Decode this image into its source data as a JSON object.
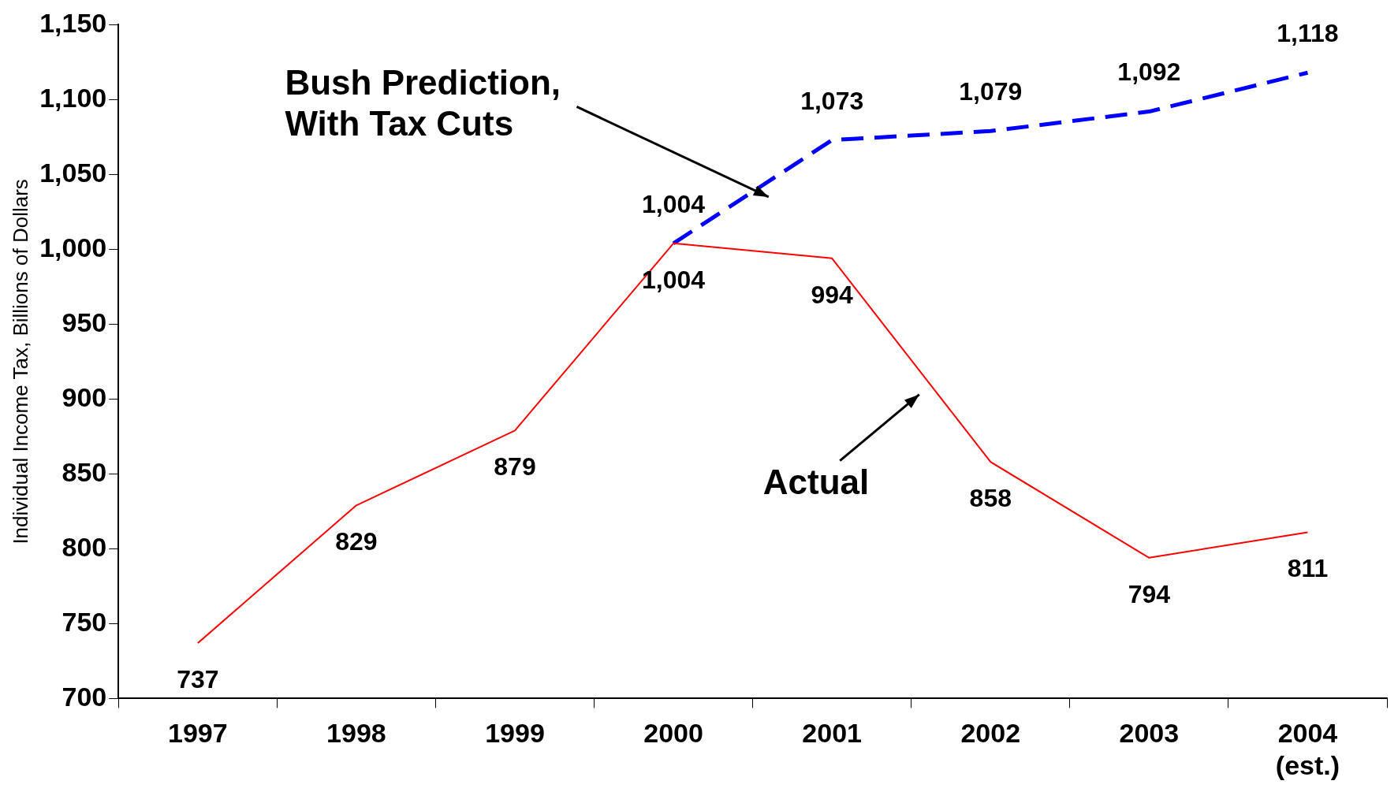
{
  "chart_data": {
    "type": "line",
    "ylabel": "Individual Income Tax, Billions of Dollars",
    "categories": [
      "1997",
      "1998",
      "1999",
      "2000",
      "2001",
      "2002",
      "2003",
      "2004\n(est.)"
    ],
    "series": [
      {
        "name": "Actual",
        "color": "#ff0000",
        "line_style": "solid",
        "values": [
          737,
          829,
          879,
          1004,
          994,
          858,
          794,
          811
        ],
        "value_labels": [
          "737",
          "829",
          "879",
          "1,004",
          "994",
          "858",
          "794",
          "811"
        ]
      },
      {
        "name": "Bush Prediction,\nWith Tax Cuts",
        "color": "#0000ff",
        "line_style": "dashed",
        "values": [
          null,
          null,
          null,
          1004,
          1073,
          1079,
          1092,
          1118
        ],
        "value_labels": [
          null,
          null,
          null,
          "1,004",
          "1,073",
          "1,079",
          "1,092",
          "1,118"
        ]
      }
    ],
    "ylim": [
      700,
      1150
    ],
    "yticks": [
      700,
      750,
      800,
      850,
      900,
      950,
      {
        "value": 1000,
        "label": "1,000"
      },
      {
        "value": 1050,
        "label": "1,050"
      },
      {
        "value": 1100,
        "label": "1,100"
      },
      {
        "value": 1150,
        "label": "1,150"
      }
    ],
    "grid": false,
    "legend": false,
    "marker": "none"
  }
}
